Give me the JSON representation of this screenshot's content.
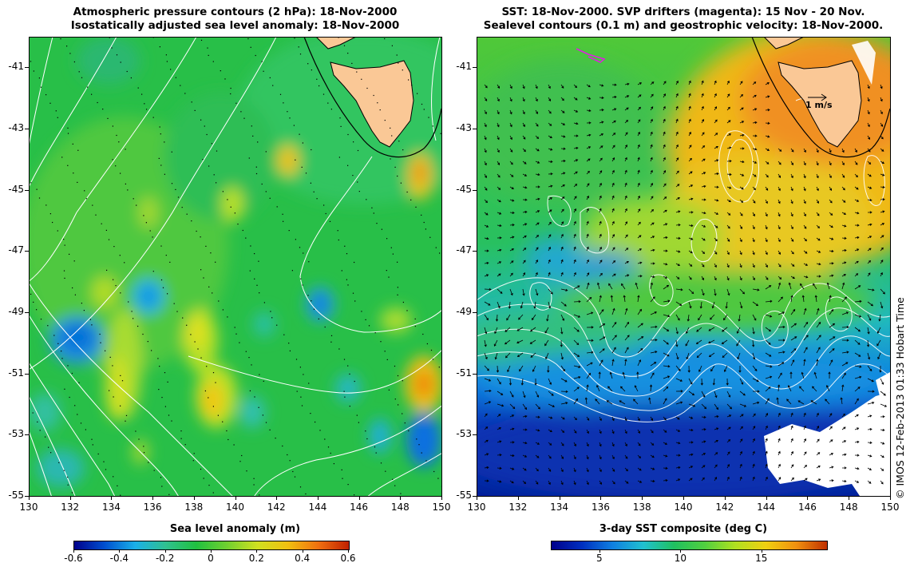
{
  "left_panel": {
    "title_line1": "Atmospheric pressure contours (2 hPa): 18-Nov-2000",
    "title_line2": "Isostatically adjusted sea level anomaly: 18-Nov-2000",
    "colorbar_label": "Sea level anomaly (m)",
    "colorbar_ticks": [
      "-0.6",
      "-0.4",
      "-0.2",
      "0",
      "0.2",
      "0.4",
      "0.6"
    ],
    "colorbar_range": [
      -0.6,
      0.6
    ]
  },
  "right_panel": {
    "title_line1": "SST: 18-Nov-2000. SVP drifters (magenta): 15 Nov - 20 Nov.",
    "title_line2": "Sealevel contours (0.1 m) and geostrophic velocity: 18-Nov-2000.",
    "colorbar_label": "3-day SST composite (deg C)",
    "colorbar_ticks": [
      "5",
      "10",
      "15"
    ],
    "colorbar_values": [
      5,
      10,
      15
    ],
    "colorbar_range": [
      2,
      19
    ],
    "velocity_scale_label": "1 m/s"
  },
  "axes": {
    "y_ticks": [
      "-41",
      "-43",
      "-45",
      "-47",
      "-49",
      "-51",
      "-53",
      "-55"
    ],
    "x_ticks": [
      "130",
      "132",
      "134",
      "136",
      "138",
      "140",
      "142",
      "144",
      "146",
      "148",
      "150"
    ],
    "lon_range": [
      130,
      150
    ],
    "lat_range": [
      -55,
      -40
    ]
  },
  "credit": "© IMOS 12-Feb-2013 01:33 Hobart Time",
  "colors": {
    "land": "#fac896",
    "sla_colormap": [
      "#00008b",
      "#0050d0",
      "#1ab0e8",
      "#30c090",
      "#20c040",
      "#70d030",
      "#d0e020",
      "#f0c010",
      "#f07010",
      "#c02000"
    ],
    "sst_colormap": [
      "#00008b",
      "#0030c0",
      "#1080e0",
      "#20c0d0",
      "#20c060",
      "#50d040",
      "#b0e020",
      "#f0d010",
      "#f09010",
      "#c03000"
    ]
  }
}
